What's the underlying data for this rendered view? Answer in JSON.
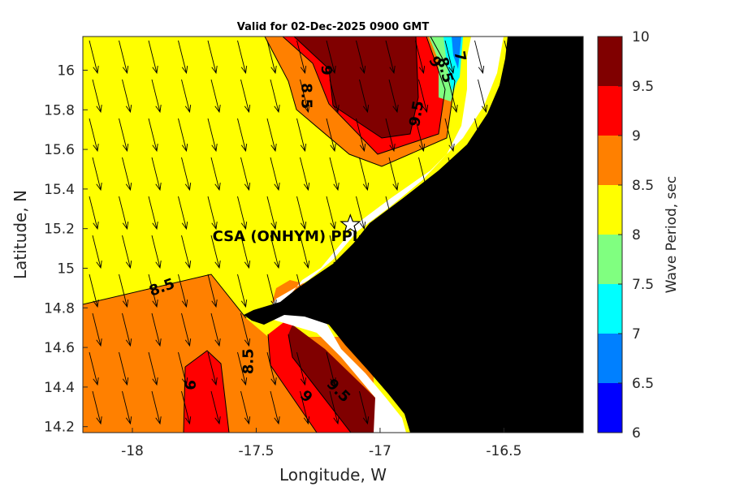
{
  "title": "Valid for 02-Dec-2025 0900 GMT",
  "x_axis": {
    "label": "Longitude, W",
    "range": [
      -18.2,
      -16.18
    ],
    "ticks": [
      {
        "value": -18,
        "label": "-18"
      },
      {
        "value": -17.5,
        "label": "-17.5"
      },
      {
        "value": -17,
        "label": "-17"
      },
      {
        "value": -16.5,
        "label": "-16.5"
      }
    ]
  },
  "y_axis": {
    "label": "Latitude, N",
    "range": [
      14.17,
      16.17
    ],
    "ticks": [
      {
        "value": 16,
        "label": "16"
      },
      {
        "value": 15.8,
        "label": "15.8"
      },
      {
        "value": 15.6,
        "label": "15.6"
      },
      {
        "value": 15.4,
        "label": "15.4"
      },
      {
        "value": 15.2,
        "label": "15.2"
      },
      {
        "value": 15,
        "label": "15"
      },
      {
        "value": 14.8,
        "label": "14.8"
      },
      {
        "value": 14.6,
        "label": "14.6"
      },
      {
        "value": 14.4,
        "label": "14.4"
      },
      {
        "value": 14.2,
        "label": "14.2"
      }
    ]
  },
  "colorbar": {
    "label": "Wave Period, sec",
    "range": [
      6,
      10
    ],
    "bins": [
      {
        "from": 6,
        "to": 6.5,
        "color": "#0000ff"
      },
      {
        "from": 6.5,
        "to": 7,
        "color": "#0080ff"
      },
      {
        "from": 7,
        "to": 7.5,
        "color": "#00ffff"
      },
      {
        "from": 7.5,
        "to": 8,
        "color": "#80ff80"
      },
      {
        "from": 8,
        "to": 8.5,
        "color": "#ffff00"
      },
      {
        "from": 8.5,
        "to": 9,
        "color": "#ff8000"
      },
      {
        "from": 9,
        "to": 9.5,
        "color": "#ff0000"
      },
      {
        "from": 9.5,
        "to": 10,
        "color": "#800000"
      }
    ],
    "ticks": [
      {
        "value": 10,
        "label": "10"
      },
      {
        "value": 9.5,
        "label": "9.5"
      },
      {
        "value": 9,
        "label": "9"
      },
      {
        "value": 8.5,
        "label": "8.5"
      },
      {
        "value": 8,
        "label": "8"
      },
      {
        "value": 7.5,
        "label": "7.5"
      },
      {
        "value": 7,
        "label": "7"
      },
      {
        "value": 6.5,
        "label": "6.5"
      },
      {
        "value": 6,
        "label": "6"
      }
    ]
  },
  "land_color": "#000000",
  "site": {
    "label": "CSA (ONHYM) PPL EP",
    "lon": -17.12,
    "lat": 15.22,
    "marker": "star-icon"
  },
  "contour_labels": [
    {
      "text": "8.5",
      "lon": -17.3,
      "lat": 15.87,
      "rotate": 90
    },
    {
      "text": "9",
      "lon": -17.22,
      "lat": 16.0,
      "rotate": 90
    },
    {
      "text": "9.5",
      "lon": -16.85,
      "lat": 15.78,
      "rotate": -80
    },
    {
      "text": "9",
      "lon": -16.78,
      "lat": 16.04,
      "rotate": 60
    },
    {
      "text": "8.5",
      "lon": -16.74,
      "lat": 16.0,
      "rotate": 75
    },
    {
      "text": "7",
      "lon": -16.68,
      "lat": 16.07,
      "rotate": 80
    },
    {
      "text": "8.5",
      "lon": -17.88,
      "lat": 14.9,
      "rotate": -20
    },
    {
      "text": "8.5",
      "lon": -17.53,
      "lat": 14.53,
      "rotate": -90
    },
    {
      "text": "9",
      "lon": -17.77,
      "lat": 14.41,
      "rotate": 90
    },
    {
      "text": "9",
      "lon": -17.3,
      "lat": 14.35,
      "rotate": 45
    },
    {
      "text": "9.5",
      "lon": -17.17,
      "lat": 14.38,
      "rotate": 45
    }
  ],
  "wind_direction": "south-southeast"
}
